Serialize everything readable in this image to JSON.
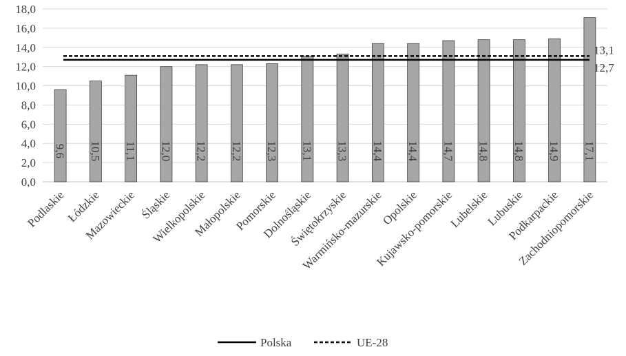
{
  "chart_data": {
    "type": "bar",
    "categories": [
      "Podlaskie",
      "Łódzkie",
      "Mazowieckie",
      "Śląskie",
      "Wielkopolskie",
      "Małopolskie",
      "Pomorskie",
      "Dolnośląskie",
      "Świętokrzyskie",
      "Warmińsko-mazurskie",
      "Opolskie",
      "Kujawsko-pomorskie",
      "Lubelskie",
      "Lubuskie",
      "Podkarpackie",
      "Zachodniopomorskie"
    ],
    "values": [
      9.6,
      10.5,
      11.1,
      12.0,
      12.2,
      12.2,
      12.3,
      13.1,
      13.3,
      14.4,
      14.4,
      14.7,
      14.8,
      14.8,
      14.9,
      17.1
    ],
    "data_labels": [
      "9,6",
      "10,5",
      "11,1",
      "12,0",
      "12,2",
      "12,2",
      "12,3",
      "13,1",
      "13,3",
      "14,4",
      "14,4",
      "14,7",
      "14,8",
      "14,8",
      "14,9",
      "17,1"
    ],
    "y_ticks": [
      0,
      2,
      4,
      6,
      8,
      10,
      12,
      14,
      16,
      18
    ],
    "y_tick_labels": [
      "0,0",
      "2,0",
      "4,0",
      "6,0",
      "8,0",
      "10,0",
      "12,0",
      "14,0",
      "16,0",
      "18,0"
    ],
    "ylim": [
      0,
      18
    ],
    "grid": true,
    "legend_position": "bottom",
    "reference_lines": [
      {
        "name": "Polska",
        "value": 12.7,
        "label": "12,7",
        "style": "solid"
      },
      {
        "name": "UE-28",
        "value": 13.1,
        "label": "13,1",
        "style": "dashed"
      }
    ],
    "colors": {
      "bar": "#a6a6a6",
      "bar_border": "#404040",
      "grid": "#d9d9d9",
      "axis": "#bfbfbf",
      "line": "#000000"
    }
  }
}
